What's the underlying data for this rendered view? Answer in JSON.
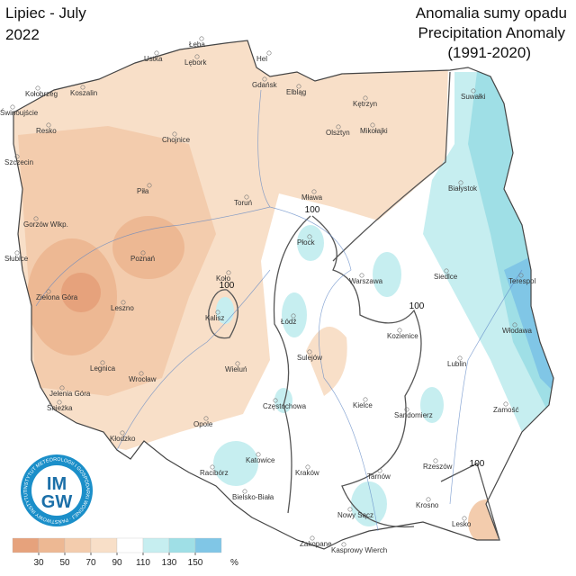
{
  "header": {
    "title_pl": "Lipiec - July",
    "year": "2022",
    "subtitle_pl": "Anomalia sumy opadu",
    "subtitle_en": "Precipitation Anomaly",
    "period": "(1991-2020)"
  },
  "cities": [
    "Łeba",
    "Hel",
    "Ustka",
    "Lębork",
    "Gdańsk",
    "Elbląg",
    "Kołobrzeg",
    "Koszalin",
    "Suwałki",
    "Kętrzyn",
    "Świnoujście",
    "Resko",
    "Olsztyn",
    "Mikołajki",
    "Chojnice",
    "Szczecin",
    "Białystok",
    "Piła",
    "Toruń",
    "Mława",
    "Gorzów Wlkp.",
    "Płock",
    "Poznań",
    "Słubice",
    "Siedlce",
    "Terespol",
    "Warszawa",
    "Koło",
    "Zielona Góra",
    "Leszno",
    "Kalisz",
    "Łódź",
    "Włodawa",
    "Kozienice",
    "Sulejów",
    "Lublin",
    "Legnica",
    "Wieluń",
    "Wrocław",
    "Jelenia Góra",
    "Śnieżka",
    "Częstochowa",
    "Kielce",
    "Sandomierz",
    "Zamość",
    "Opole",
    "Kłodzko",
    "Katowice",
    "Racibórz",
    "Kraków",
    "Tarnów",
    "Rzeszów",
    "Bielsko-Biała",
    "Nowy Sącz",
    "Krosno",
    "Lesko",
    "Zakopane",
    "Kasprowy Wierch"
  ],
  "contour_labels": [
    "100",
    "100",
    "100",
    "100"
  ],
  "legend": {
    "ticks": [
      30,
      50,
      70,
      90,
      110,
      130,
      150
    ],
    "unit": "%",
    "colors": [
      "#e6a27c",
      "#edb893",
      "#f3ccad",
      "#f8dfc8",
      "#ffffff",
      "#c6eef0",
      "#9fdfe6",
      "#80c6e6"
    ]
  },
  "logo": {
    "text_top": "IM",
    "text_bottom": "GW",
    "ring": "INSTYTUT METEOROLOGII I GOSPODARKI WODNEJ · PAŃSTWOWY INSTYTUT BADAWCZY"
  }
}
